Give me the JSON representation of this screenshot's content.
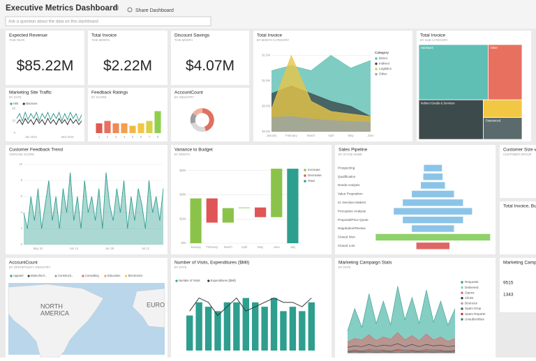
{
  "header": {
    "title": "Executive Metrics Dashboard",
    "share": "Share Dashboard",
    "search_placeholder": "Ask a question about the data on this dashboard"
  },
  "tiles": [
    {
      "title": "Expected Revenue",
      "subtitle": "THIS YEAR",
      "kpi": "$85.22M"
    },
    {
      "title": "Total Invoice",
      "subtitle": "THIS MONTH",
      "kpi": "$2.22M"
    },
    {
      "title": "Discount Savings",
      "subtitle": "THIS MONTH",
      "kpi": "$4.07M"
    },
    {
      "title": "Marketing Site Traffic",
      "subtitle": "BY DATE",
      "chart": {
        "type": "line",
        "categories": [
          null,
          null,
          null,
          null,
          null,
          "Jan 2015",
          null,
          null,
          null,
          null,
          null,
          null,
          null,
          null,
          null,
          null,
          null,
          null,
          "Mar 2015",
          null,
          null,
          null,
          null,
          null
        ],
        "series": [
          {
            "name": "Hits",
            "color": "#3a9f93",
            "values": [
              12,
              16,
              10,
              17,
              11,
              16,
              12,
              17,
              10,
              16,
              12,
              17,
              11,
              16,
              12,
              17,
              10,
              16,
              11,
              17,
              12,
              16,
              10,
              15
            ]
          },
          {
            "name": "Bounces",
            "color": "#333333",
            "values": [
              8,
              11,
              7,
              12,
              8,
              11,
              7,
              12,
              8,
              11,
              7,
              12,
              8,
              11,
              7,
              12,
              8,
              11,
              7,
              12,
              8,
              11,
              7,
              10
            ]
          }
        ],
        "ylim": [
          0,
          20
        ],
        "yticks": [
          0,
          10,
          20
        ]
      }
    },
    {
      "title": "Feedback Ratings",
      "subtitle": "BY SCORE",
      "chart": {
        "type": "bar",
        "categories": [
          "1",
          "2",
          "3",
          "4",
          "5",
          "6",
          "7",
          "8"
        ],
        "values": [
          4,
          5,
          4,
          4,
          3,
          4,
          5,
          9
        ],
        "colors": [
          "#e05a4f",
          "#e8705f",
          "#ec8a5a",
          "#f0a04f",
          "#f2b845",
          "#f2c744",
          "#d8d04a",
          "#8fcf4f"
        ],
        "ylim": [
          0,
          10
        ]
      }
    },
    {
      "title": "AccountCount",
      "subtitle": "BY INDUSTRY",
      "chart": {
        "type": "donut",
        "values": [
          45,
          25,
          15,
          15
        ],
        "colors": [
          "#e07060",
          "#d9d9d9",
          "#9e9e9e",
          "#f0b0a0"
        ]
      }
    },
    {
      "title": "Total Invoice",
      "subtitle": "BY MONTH CATEGORY",
      "chart": {
        "type": "area",
        "legend_title": "Category",
        "categories": [
          "January",
          "February",
          "March",
          "April",
          "May",
          "June"
        ],
        "series": [
          {
            "name": "Direct",
            "color": "#5fbfb4",
            "values": [
              1.2,
              1.3,
              1.2,
              1.5,
              1.25,
              1.4
            ]
          },
          {
            "name": "Indirect",
            "color": "#3c4a4c",
            "values": [
              0.75,
              0.9,
              0.75,
              0.6,
              0.5,
              0.3
            ]
          },
          {
            "name": "Logistics",
            "color": "#e8c547",
            "values": [
              0.45,
              1.5,
              0.6,
              0.4,
              0.35,
              0.3
            ]
          },
          {
            "name": "Other",
            "color": "#9aa5a6",
            "values": [
              0.28,
              0.3,
              0.25,
              0.22,
              0.2,
              0.18
            ]
          }
        ],
        "ylim": [
          0,
          1.6
        ],
        "yticks": [
          {
            "value": 0,
            "label": "$0.0M"
          },
          {
            "value": 0.5,
            "label": "$0.5M"
          },
          {
            "value": 1,
            "label": "$1.0M"
          },
          {
            "value": 1.5,
            "label": "$1.5M"
          }
        ]
      }
    },
    {
      "title": "Total Invoice",
      "subtitle": "BY SUB CATEGORY",
      "chart": {
        "type": "treemap",
        "categories": [
          "Hardware",
          "Other",
          "Indirect Goods & Services",
          "Outsourced",
          null
        ],
        "values": [
          45,
          22,
          30,
          10,
          8
        ],
        "colors": [
          "#5fbfb4",
          "#e8705f",
          "#3c4a4c",
          "#5b6a6c",
          "#f2c744"
        ]
      }
    },
    {
      "title": "Customer Feedback Trend",
      "subtitle": "AVERAGE SCORE",
      "chart": {
        "type": "area",
        "categories": [
          null,
          null,
          null,
          null,
          "May 31",
          null,
          null,
          null,
          null,
          null,
          null,
          null,
          null,
          null,
          "Jun 14",
          null,
          null,
          null,
          null,
          null,
          null,
          null,
          null,
          null,
          "Jun 28",
          null,
          null,
          null,
          null,
          null,
          null,
          null,
          null,
          null,
          "Jul 12",
          null,
          null,
          null,
          null,
          null
        ],
        "series": [
          {
            "color": "#2e9e8f",
            "values": [
              4,
              2,
              6,
              3,
              7,
              2,
              5,
              8,
              3,
              6,
              2,
              7,
              4,
              9,
              3,
              6,
              2,
              8,
              4,
              6,
              3,
              7,
              2,
              9,
              5,
              3,
              7,
              4,
              8,
              2,
              6,
              3,
              7,
              5,
              2,
              8,
              4,
              6,
              3,
              7
            ]
          }
        ],
        "ylim": [
          0,
          10
        ],
        "yticks": [
          0,
          2,
          4,
          6,
          8,
          10
        ]
      }
    },
    {
      "title": "Variance to Budget",
      "subtitle": "BY MONTH",
      "chart": {
        "type": "waterfall",
        "categories": [
          "January",
          "February",
          "March",
          "April",
          "May",
          "June",
          "July"
        ],
        "values": [
          37,
          -20,
          12,
          0.5,
          -8,
          40,
          61.5
        ],
        "legend": [
          {
            "name": "Increase",
            "color": "#8bc34a"
          },
          {
            "name": "Decrease",
            "color": "#e05555"
          },
          {
            "name": "Total",
            "color": "#2e9e8f"
          }
        ],
        "ylim": [
          0,
          65
        ],
        "yticks": [
          {
            "value": 0,
            "label": "$0K"
          },
          {
            "value": 20,
            "label": "$20K"
          },
          {
            "value": 40,
            "label": "$40K"
          },
          {
            "value": 60,
            "label": "$60K"
          }
        ]
      }
    },
    {
      "title": "Sales Pipeline",
      "subtitle": "BY STAGE NAME",
      "chart": {
        "type": "funnel",
        "categories": [
          "Prospecting",
          "Qualification",
          "Needs Analysis",
          "Value Proposition",
          "Id. Decision Makers",
          "Perception Analysis",
          "Proposal/Price Quote",
          "Negotiation/Review",
          "Closed Won",
          "Closed Lost"
        ],
        "values": [
          30,
          32,
          40,
          70,
          100,
          130,
          100,
          70,
          190,
          55
        ],
        "colors": [
          "#8cc4e8",
          "#8cc4e8",
          "#8cc4e8",
          "#8cc4e8",
          "#8cc4e8",
          "#8cc4e8",
          "#8cc4e8",
          "#8cc4e8",
          "#8fd16a",
          "#e06666"
        ]
      }
    },
    {
      "title": "Customer Size vs",
      "subtitle": "CUSTOMER GROUP"
    },
    {
      "title": "Total Invoice, Bud"
    },
    {
      "title": "AccountCount",
      "subtitle": "BY OPPORTUNITY INDUSTRY",
      "chart": {
        "type": "map",
        "legend": [
          {
            "name": "Apparel",
            "color": "#2e9e8f"
          },
          {
            "name": "Biotechnol...",
            "color": "#3c4a4c"
          },
          {
            "name": "Constructi...",
            "color": "#9e9e9e"
          },
          {
            "name": "Consulting",
            "color": "#e07060"
          },
          {
            "name": "Education",
            "color": "#f0a04f"
          },
          {
            "name": "Electronics",
            "color": "#f2c744"
          }
        ],
        "map_labels": [
          "NORTH",
          "AMERICA",
          "EURO"
        ]
      }
    },
    {
      "title": "Number of Visits, Expenditures ($Mil)",
      "subtitle": "BY DATE",
      "chart": {
        "type": "combo",
        "series": [
          {
            "name": "Number of Visits",
            "color": "#2e9e8f",
            "values": [
              8,
              11,
              10,
              9,
              11,
              11,
              12,
              11,
              10,
              12,
              9,
              10,
              9,
              11
            ]
          },
          {
            "name": "Expenditures ($Mil)",
            "color": "#333333",
            "values": [
              9,
              12,
              11,
              8,
              10,
              12,
              9,
              10,
              11,
              12,
              11,
              11,
              10,
              12
            ]
          }
        ],
        "ylim": [
          0,
          14
        ]
      }
    },
    {
      "title": "Marketing Campaign Stats",
      "subtitle": "BY DATE",
      "chart": {
        "type": "multiarea",
        "series": [
          {
            "name": "Requests",
            "color": "#2e9e8f",
            "values": [
              30,
              60,
              35,
              80,
              40,
              70,
              38,
              90,
              45,
              75,
              40,
              85,
              42,
              70,
              38,
              60
            ]
          },
          {
            "name": "Delivered",
            "color": "#7fd1c6",
            "values": [
              25,
              50,
              30,
              70,
              35,
              60,
              32,
              80,
              40,
              65,
              35,
              75,
              38,
              60,
              33,
              50
            ]
          },
          {
            "name": "Opens",
            "color": "#e06666",
            "values": [
              15,
              20,
              18,
              25,
              17,
              22,
              19,
              28,
              18,
              24,
              17,
              26,
              18,
              22,
              16,
              20
            ]
          },
          {
            "name": "Clicks",
            "color": "#333333",
            "values": [
              8,
              10,
              9,
              12,
              9,
              11,
              10,
              13,
              9,
              12,
              9,
              12,
              10,
              11,
              9,
              10
            ]
          },
          {
            "name": "Bounces",
            "color": "#9e9e9e",
            "values": [
              5,
              6,
              5,
              7,
              6,
              6,
              5,
              8,
              6,
              7,
              5,
              7,
              6,
              6,
              5,
              6
            ]
          },
          {
            "name": "Spam Drop",
            "color": "#555555",
            "values": [
              3,
              4,
              3,
              5,
              4,
              4,
              3,
              5,
              4,
              4,
              3,
              5,
              4,
              4,
              3,
              4
            ]
          },
          {
            "name": "Spam Reports",
            "color": "#c0392b",
            "values": [
              2,
              3,
              2,
              3,
              2,
              3,
              2,
              4,
              2,
              3,
              2,
              3,
              2,
              3,
              2,
              3
            ]
          },
          {
            "name": "Unsubscribes",
            "color": "#3a7d7d",
            "values": [
              1,
              2,
              1,
              2,
              1,
              2,
              1,
              2,
              1,
              2,
              1,
              2,
              1,
              2,
              1,
              2
            ]
          }
        ],
        "ylim": [
          0,
          100
        ]
      }
    },
    {
      "title": "Marketing Campa",
      "kpis": [
        9515,
        1343
      ]
    }
  ]
}
